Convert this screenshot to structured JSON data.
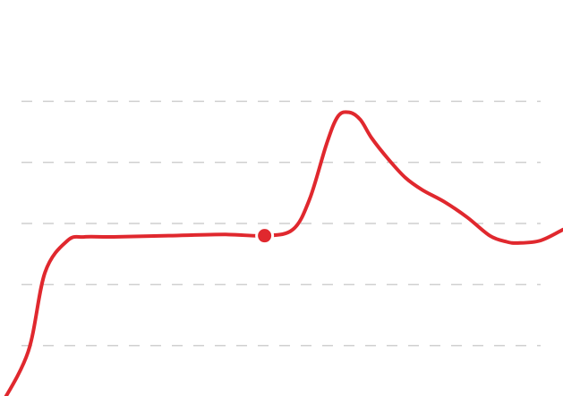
{
  "chart_data": {
    "type": "line",
    "title": "",
    "xlabel": "",
    "ylabel": "",
    "grid": true,
    "legend": "none",
    "xlim": [
      0,
      100
    ],
    "ylim": [
      0,
      6
    ],
    "gridlines_y": [
      1,
      2,
      3,
      4,
      5
    ],
    "series": [
      {
        "color": "#e0282e",
        "x": [
          0,
          5,
          8,
          12,
          15,
          20,
          30,
          40,
          47,
          52,
          55,
          58,
          60,
          62,
          64,
          66,
          69,
          72,
          75,
          79,
          83,
          87,
          90,
          92,
          96,
          100
        ],
        "y": [
          0,
          0.9,
          2.2,
          2.72,
          2.78,
          2.78,
          2.8,
          2.82,
          2.8,
          2.9,
          3.4,
          4.3,
          4.75,
          4.82,
          4.7,
          4.4,
          4.05,
          3.75,
          3.55,
          3.35,
          3.1,
          2.8,
          2.7,
          2.68,
          2.72,
          2.9
        ]
      }
    ],
    "markers": [
      {
        "x": 47,
        "y": 2.8,
        "color": "#e0282e"
      }
    ]
  }
}
